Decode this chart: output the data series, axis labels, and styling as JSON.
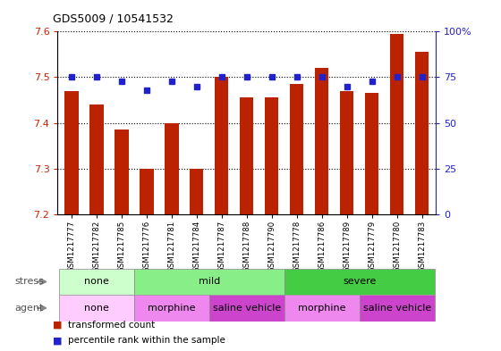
{
  "title": "GDS5009 / 10541532",
  "samples": [
    "GSM1217777",
    "GSM1217782",
    "GSM1217785",
    "GSM1217776",
    "GSM1217781",
    "GSM1217784",
    "GSM1217787",
    "GSM1217788",
    "GSM1217790",
    "GSM1217778",
    "GSM1217786",
    "GSM1217789",
    "GSM1217779",
    "GSM1217780",
    "GSM1217783"
  ],
  "transformed_count": [
    7.47,
    7.44,
    7.385,
    7.3,
    7.4,
    7.3,
    7.5,
    7.455,
    7.455,
    7.485,
    7.52,
    7.47,
    7.465,
    7.595,
    7.555
  ],
  "percentile_rank": [
    75,
    75,
    73,
    68,
    73,
    70,
    75,
    75,
    75,
    75,
    75,
    70,
    73,
    75,
    75
  ],
  "ylim_left": [
    7.2,
    7.6
  ],
  "ylim_right": [
    0,
    100
  ],
  "yticks_left": [
    7.2,
    7.3,
    7.4,
    7.5,
    7.6
  ],
  "yticks_right": [
    0,
    25,
    50,
    75,
    100
  ],
  "bar_color": "#bb2200",
  "dot_color": "#2222cc",
  "grid_color": "#000000",
  "stress_groups": [
    {
      "label": "none",
      "start": 0,
      "end": 3,
      "color": "#ccffcc"
    },
    {
      "label": "mild",
      "start": 3,
      "end": 9,
      "color": "#88ee88"
    },
    {
      "label": "severe",
      "start": 9,
      "end": 15,
      "color": "#44cc44"
    }
  ],
  "agent_groups": [
    {
      "label": "none",
      "start": 0,
      "end": 3,
      "color": "#ffccff"
    },
    {
      "label": "morphine",
      "start": 3,
      "end": 6,
      "color": "#ee88ee"
    },
    {
      "label": "saline vehicle",
      "start": 6,
      "end": 9,
      "color": "#cc44cc"
    },
    {
      "label": "morphine",
      "start": 9,
      "end": 12,
      "color": "#ee88ee"
    },
    {
      "label": "saline vehicle",
      "start": 12,
      "end": 15,
      "color": "#cc44cc"
    }
  ],
  "tick_label_color": "#cc2200",
  "right_tick_color": "#2222cc",
  "bg_color": "#ffffff"
}
